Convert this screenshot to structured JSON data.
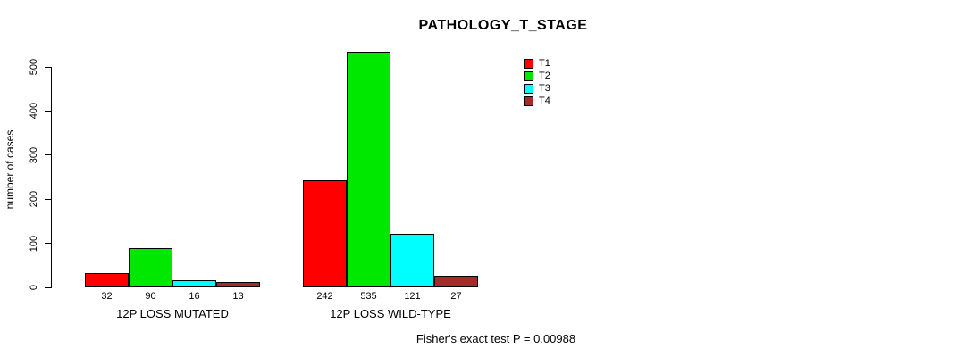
{
  "chart_data": {
    "type": "bar",
    "title": "PATHOLOGY_T_STAGE",
    "ylabel": "number of cases",
    "xlabel": "",
    "ylim": [
      0,
      500
    ],
    "yticks": [
      0,
      100,
      200,
      300,
      400,
      500
    ],
    "categories": [
      "12P LOSS MUTATED",
      "12P LOSS WILD-TYPE"
    ],
    "series": [
      {
        "name": "T1",
        "color": "#FF0000",
        "values": [
          32,
          242
        ]
      },
      {
        "name": "T2",
        "color": "#00E800",
        "values": [
          90,
          535
        ]
      },
      {
        "name": "T3",
        "color": "#00FFFF",
        "values": [
          16,
          121
        ]
      },
      {
        "name": "T4",
        "color": "#A52A2A",
        "values": [
          13,
          27
        ]
      }
    ],
    "bar_value_labels_shown": true,
    "legend_position": "top-right",
    "grid": false,
    "caption": "Fisher's exact test P = 0.00988"
  }
}
